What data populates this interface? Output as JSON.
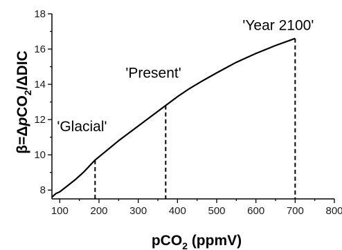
{
  "chart_data": {
    "type": "line",
    "title": "",
    "xlabel": "pCO",
    "xlabel_sub": "2",
    "xlabel_tail": " (ppmV)",
    "ylabel_parts": [
      "β=Δ",
      "p",
      "CO",
      "2",
      "/ΔDIC"
    ],
    "xlim": [
      80,
      800
    ],
    "ylim": [
      7.5,
      18
    ],
    "xticks": [
      100,
      200,
      300,
      400,
      500,
      600,
      700,
      800
    ],
    "yticks": [
      8,
      10,
      12,
      14,
      16,
      18
    ],
    "grid": false,
    "series": [
      {
        "x": [
          80,
          90,
          100,
          120,
          140,
          160,
          190,
          220,
          250,
          280,
          310,
          340,
          370,
          400,
          430,
          460,
          500,
          550,
          600,
          650,
          700
        ],
        "y": [
          7.6,
          7.8,
          7.9,
          8.25,
          8.6,
          9.0,
          9.7,
          10.25,
          10.8,
          11.3,
          11.8,
          12.3,
          12.8,
          13.3,
          13.75,
          14.15,
          14.65,
          15.25,
          15.75,
          16.2,
          16.6
        ]
      }
    ],
    "markers": [
      {
        "x": 190,
        "y": 9.7,
        "label": "'Glacial'"
      },
      {
        "x": 370,
        "y": 12.8,
        "label": "'Present'"
      },
      {
        "x": 700,
        "y": 16.6,
        "label": "'Year 2100'"
      }
    ]
  }
}
